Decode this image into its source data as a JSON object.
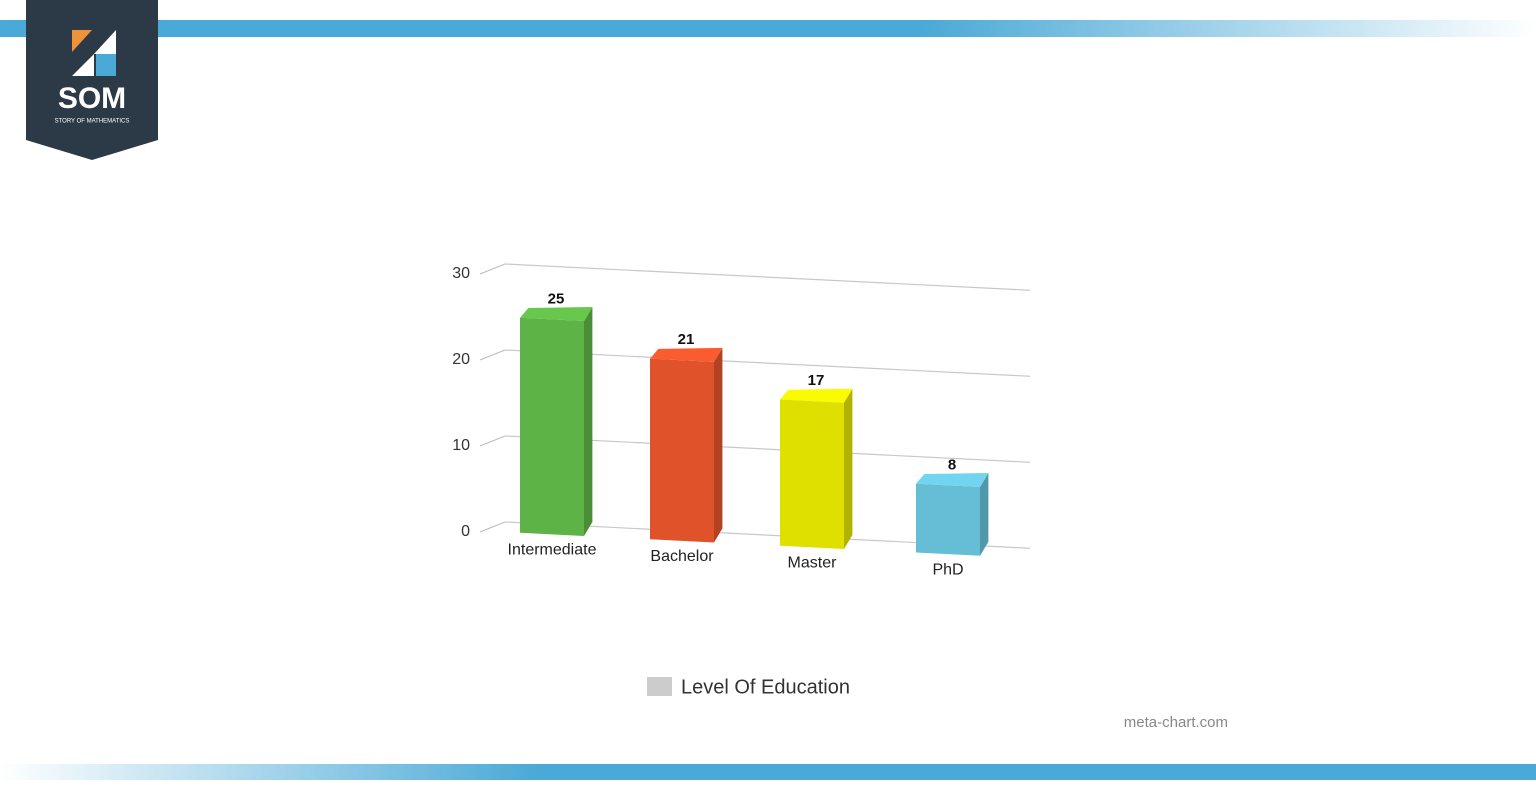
{
  "logo": {
    "title": "SOM",
    "subtitle": "STORY OF MATHEMATICS"
  },
  "chart_data": {
    "type": "bar3d",
    "categories": [
      "Intermediate",
      "Bachelor",
      "Master",
      "PhD"
    ],
    "series": [
      {
        "name": "Level Of Education",
        "color": "#cccccc",
        "values": [
          25,
          21,
          17,
          8
        ]
      }
    ],
    "bar_colors": [
      "#5db346",
      "#e0522a",
      "#dfe000",
      "#66bed6"
    ],
    "ylim": [
      0,
      30
    ],
    "yticks": [
      0,
      10,
      20,
      30
    ],
    "grid": true
  },
  "credit": "meta-chart.com"
}
